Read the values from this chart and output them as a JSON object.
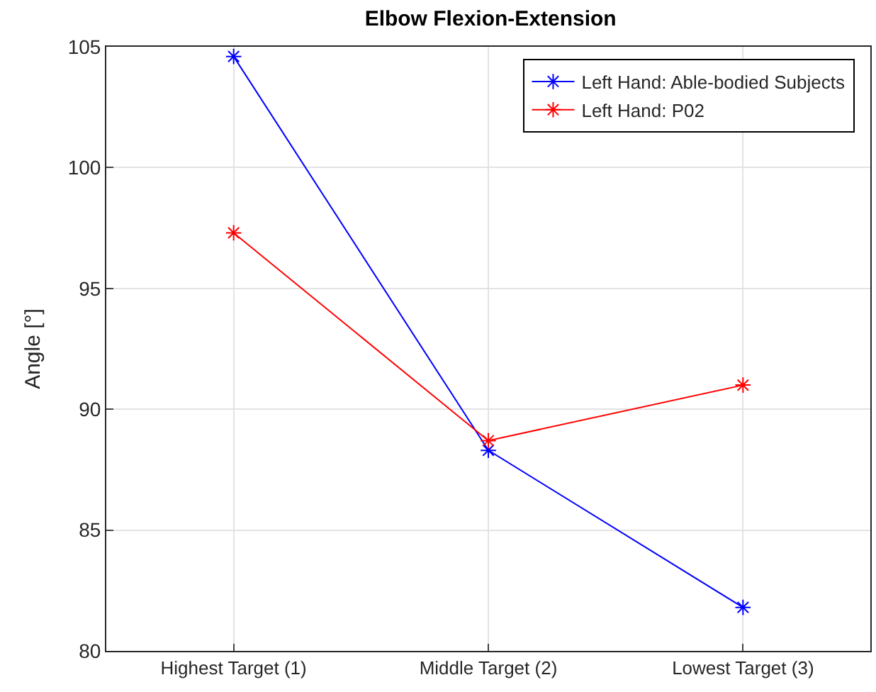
{
  "chart_data": {
    "type": "line",
    "title": "Elbow Flexion-Extension",
    "ylabel": "Angle [°]",
    "categories": [
      "Highest Target (1)",
      "Middle Target (2)",
      "Lowest Target (3)"
    ],
    "series": [
      {
        "name": "Left Hand: Able-bodied Subjects",
        "color": "#0000ff",
        "values": [
          104.6,
          88.3,
          81.8
        ]
      },
      {
        "name": "Left Hand: P02",
        "color": "#ff0000",
        "values": [
          97.3,
          88.7,
          91.0
        ]
      }
    ],
    "ylim": [
      80,
      105
    ],
    "yticks": [
      80,
      85,
      90,
      95,
      100,
      105
    ],
    "grid": true,
    "legend": "top right",
    "marker": "cross",
    "line_style": "solid"
  }
}
